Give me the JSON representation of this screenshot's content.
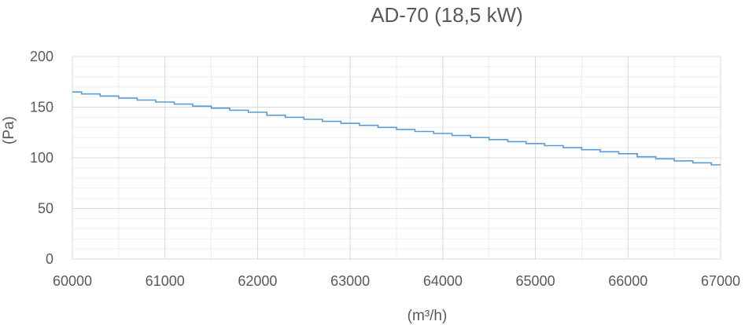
{
  "chart_data": {
    "type": "line",
    "title": "AD-70 (18,5 kW)",
    "xlabel": "(m³/h)",
    "ylabel": "(Pa)",
    "xlim": [
      60000,
      67000
    ],
    "ylim": [
      0,
      200
    ],
    "x_ticks": [
      "60000",
      "61000",
      "62000",
      "63000",
      "64000",
      "65000",
      "66000",
      "67000"
    ],
    "y_ticks": [
      "0",
      "50",
      "100",
      "150",
      "200"
    ],
    "grid": true,
    "line_color": "#5b9bd5",
    "series": [
      {
        "x": [
          60000,
          60100,
          60200,
          60300,
          60400,
          60500,
          60600,
          60700,
          60800,
          60900,
          61000,
          61100,
          61200,
          61300,
          61400,
          61500,
          61600,
          61700,
          61800,
          61900,
          62000,
          62100,
          62200,
          62300,
          62400,
          62500,
          62600,
          62700,
          62800,
          62900,
          63000,
          63100,
          63200,
          63300,
          63400,
          63500,
          63600,
          63700,
          63800,
          63900,
          64000,
          64100,
          64200,
          64300,
          64400,
          64500,
          64600,
          64700,
          64800,
          64900,
          65000,
          65100,
          65200,
          65300,
          65400,
          65500,
          65600,
          65700,
          65800,
          65900,
          66000,
          66100,
          66200,
          66300,
          66400,
          66500,
          66600,
          66700,
          66800,
          66900,
          67000
        ],
        "y": [
          165,
          163,
          163,
          161,
          161,
          159,
          159,
          157,
          157,
          155,
          155,
          153,
          153,
          151,
          151,
          149,
          149,
          147,
          147,
          145,
          145,
          142,
          142,
          140,
          140,
          138,
          138,
          136,
          136,
          134,
          134,
          132,
          132,
          130,
          130,
          128,
          128,
          126,
          126,
          124,
          124,
          122,
          122,
          120,
          120,
          118,
          118,
          116,
          116,
          114,
          114,
          112,
          112,
          110,
          110,
          108,
          108,
          106,
          106,
          104,
          104,
          101,
          101,
          99,
          99,
          97,
          97,
          95,
          95,
          93,
          93
        ]
      }
    ]
  }
}
